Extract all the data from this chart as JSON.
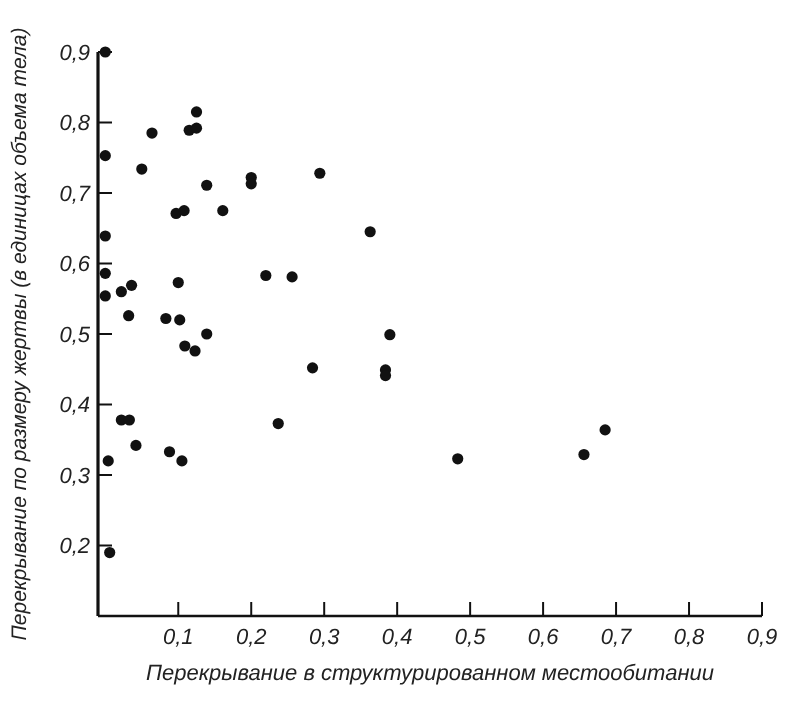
{
  "chart_data": {
    "type": "scatter",
    "xlabel": "Перекрывание в структурированном местообитании",
    "ylabel": "Перекрывание по размеру жертвы (в единицах объема тела)",
    "xlim": [
      -0.01,
      0.9
    ],
    "ylim": [
      0.1,
      0.9
    ],
    "xticks": [
      {
        "value": 0.1,
        "label": "0,1"
      },
      {
        "value": 0.2,
        "label": "0,2"
      },
      {
        "value": 0.3,
        "label": "0,3"
      },
      {
        "value": 0.4,
        "label": "0,4"
      },
      {
        "value": 0.5,
        "label": "0,5"
      },
      {
        "value": 0.6,
        "label": "0,6"
      },
      {
        "value": 0.7,
        "label": "0,7"
      },
      {
        "value": 0.8,
        "label": "0,8"
      },
      {
        "value": 0.9,
        "label": "0,9"
      }
    ],
    "yticks": [
      {
        "value": 0.2,
        "label": "0,2"
      },
      {
        "value": 0.3,
        "label": "0,3"
      },
      {
        "value": 0.4,
        "label": "0,4"
      },
      {
        "value": 0.5,
        "label": "0,5"
      },
      {
        "value": 0.6,
        "label": "0,6"
      },
      {
        "value": 0.7,
        "label": "0,7"
      },
      {
        "value": 0.8,
        "label": "0,8"
      },
      {
        "value": 0.9,
        "label": "0,9"
      }
    ],
    "marker": "circle",
    "grid": false,
    "series": [
      {
        "color": "#111111",
        "x": [
          0.0,
          0.0,
          0.0,
          0.0,
          0.0,
          0.022,
          0.036,
          0.032,
          0.05,
          0.064,
          0.125,
          0.115,
          0.125,
          0.139,
          0.097,
          0.108,
          0.161,
          0.2,
          0.2,
          0.1,
          0.22,
          0.256,
          0.083,
          0.102,
          0.139,
          0.109,
          0.123,
          0.022,
          0.033,
          0.042,
          0.004,
          0.088,
          0.105,
          0.006,
          0.237,
          0.294,
          0.363,
          0.39,
          0.284,
          0.384,
          0.384,
          0.483,
          0.656,
          0.685
        ],
        "values": [
          0.9,
          0.753,
          0.639,
          0.586,
          0.554,
          0.56,
          0.569,
          0.526,
          0.734,
          0.785,
          0.815,
          0.789,
          0.792,
          0.711,
          0.671,
          0.675,
          0.675,
          0.722,
          0.713,
          0.573,
          0.583,
          0.581,
          0.522,
          0.52,
          0.5,
          0.483,
          0.476,
          0.378,
          0.378,
          0.342,
          0.32,
          0.333,
          0.32,
          0.19,
          0.373,
          0.728,
          0.645,
          0.499,
          0.452,
          0.449,
          0.441,
          0.323,
          0.329,
          0.364
        ]
      }
    ]
  }
}
